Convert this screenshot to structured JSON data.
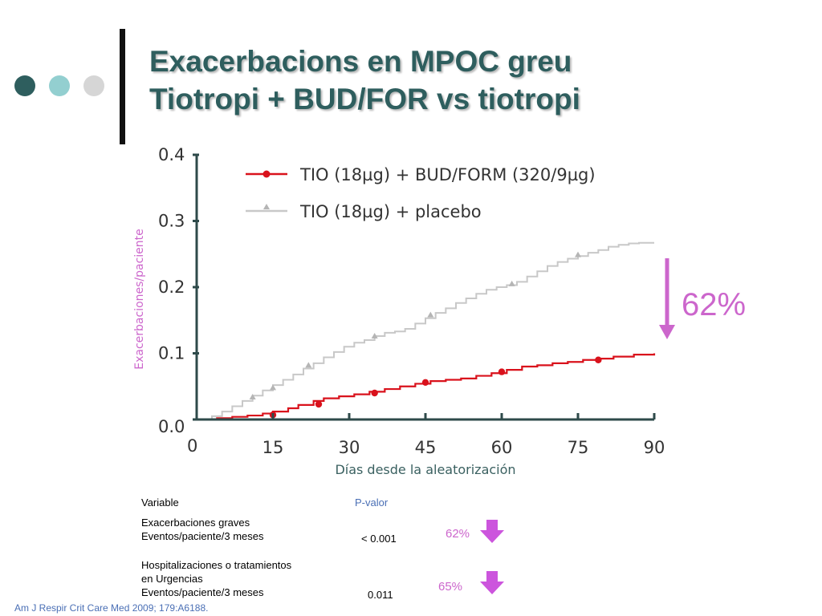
{
  "title": {
    "line1": "Exacerbacions en MPOC greu",
    "line2": "Tiotropi + BUD/FOR vs tiotropi"
  },
  "colors": {
    "title": "#2e5e5e",
    "series_red": "#d9121c",
    "series_grey": "#c8c8c8",
    "axis": "#2e4a4a",
    "accent_pink": "#cc66cc",
    "pvalue_blue": "#4a6fb5"
  },
  "chart_data": {
    "type": "line",
    "xlabel": "Días desde la aleatorización",
    "ylabel": "Exacerbaciones/paciente",
    "xlim": [
      0,
      90
    ],
    "ylim": [
      0,
      0.4
    ],
    "xticks": [
      "0",
      "15",
      "30",
      "45",
      "60",
      "75",
      "90"
    ],
    "yticks": [
      "0.0",
      "0.1",
      "0.2",
      "0.3",
      "0.4"
    ],
    "legend_position": "top",
    "series": [
      {
        "name": "TIO (18µg) + BUD/FORM (320/9µg)",
        "color": "#d9121c",
        "marker": "circle",
        "x": [
          1,
          4,
          7,
          10,
          13,
          15,
          18,
          20,
          23,
          25,
          28,
          31,
          34,
          37,
          40,
          43,
          46,
          49,
          52,
          55,
          58,
          61,
          64,
          67,
          70,
          73,
          76,
          79,
          82,
          86,
          90
        ],
        "y": [
          0.0,
          0.002,
          0.004,
          0.006,
          0.009,
          0.012,
          0.017,
          0.022,
          0.028,
          0.032,
          0.035,
          0.038,
          0.042,
          0.046,
          0.05,
          0.054,
          0.058,
          0.06,
          0.062,
          0.066,
          0.07,
          0.075,
          0.08,
          0.082,
          0.085,
          0.087,
          0.09,
          0.092,
          0.095,
          0.098,
          0.1
        ],
        "markers_x": [
          15,
          24,
          35,
          45,
          60,
          79
        ],
        "markers_y": [
          0.007,
          0.023,
          0.04,
          0.056,
          0.072,
          0.09
        ]
      },
      {
        "name": "TIO (18µg) + placebo",
        "color": "#c8c8c8",
        "marker": "triangle",
        "x": [
          1,
          3,
          5,
          7,
          9,
          11,
          13,
          15,
          17,
          19,
          21,
          23,
          25,
          27,
          29,
          31,
          33,
          35,
          37,
          39,
          41,
          43,
          45,
          47,
          49,
          51,
          53,
          55,
          57,
          59,
          61,
          63,
          65,
          67,
          69,
          71,
          73,
          75,
          77,
          79,
          81,
          83,
          85,
          87,
          90
        ],
        "y": [
          0.0,
          0.005,
          0.012,
          0.02,
          0.028,
          0.036,
          0.044,
          0.052,
          0.06,
          0.068,
          0.077,
          0.085,
          0.094,
          0.102,
          0.11,
          0.116,
          0.12,
          0.126,
          0.131,
          0.133,
          0.137,
          0.145,
          0.153,
          0.161,
          0.168,
          0.176,
          0.183,
          0.19,
          0.196,
          0.2,
          0.203,
          0.208,
          0.216,
          0.224,
          0.232,
          0.238,
          0.243,
          0.247,
          0.252,
          0.256,
          0.261,
          0.264,
          0.266,
          0.267,
          0.267
        ],
        "markers_x": [
          11,
          15,
          22,
          35,
          46,
          62,
          75
        ],
        "markers_y": [
          0.034,
          0.048,
          0.082,
          0.126,
          0.158,
          0.205,
          0.249
        ]
      }
    ],
    "annotation": "62%"
  },
  "table": {
    "header_variable": "Variable",
    "header_pvalue": "P-valor",
    "rows": [
      {
        "line1": "Exacerbaciones graves",
        "line2": "Eventos/paciente/3 meses",
        "line3": "",
        "pvalue": "< 0.001",
        "reduction": "62%"
      },
      {
        "line1": "Hospitalizaciones o tratamientos",
        "line2": "en Urgencias",
        "line3": "Eventos/paciente/3 meses",
        "pvalue": "0.011",
        "reduction": "65%"
      }
    ]
  },
  "citation": "Am J Respir Crit Care Med 2009; 179:A6188.",
  "icons": [
    "bullet-dot-icon",
    "down-arrow-icon"
  ]
}
